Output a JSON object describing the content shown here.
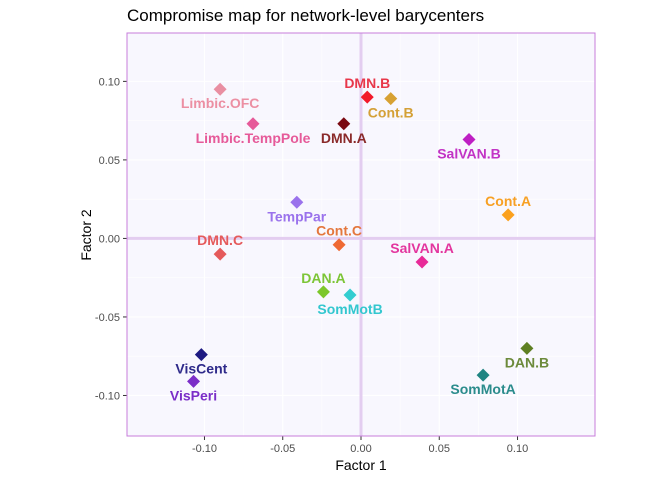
{
  "chart_data": {
    "type": "scatter",
    "title": "Compromise map for network-level barycenters",
    "xlabel": "Factor 1",
    "ylabel": "Factor 2",
    "xlim": [
      -0.1495,
      0.1495
    ],
    "ylim": [
      -0.1258,
      0.1308
    ],
    "x_ticks": [
      -0.1,
      -0.05,
      0.0,
      0.05,
      0.1
    ],
    "x_tick_labels": [
      "-0.10",
      "-0.05",
      "0.00",
      "0.05",
      "0.10"
    ],
    "y_ticks": [
      0.1,
      0.05,
      0.0,
      -0.05,
      -0.1
    ],
    "y_tick_labels": [
      "0.10",
      "0.05",
      "0.00",
      "-0.05",
      "-0.10"
    ],
    "grid": true,
    "legend": "none",
    "panel_background": "#F8F7FE",
    "panel_border": "#C77CDB",
    "origin_line_color": "#E3CDF0",
    "points": [
      {
        "label": "Limbic.OFC",
        "x": -0.09,
        "y": 0.095,
        "color": "#E98FA2",
        "label_color": "#EC8FA3",
        "label_side": "below"
      },
      {
        "label": "Limbic.TempPole",
        "x": -0.069,
        "y": 0.073,
        "color": "#E65A99",
        "label_color": "#E65A99",
        "label_side": "below"
      },
      {
        "label": "DMN.B",
        "x": 0.004,
        "y": 0.09,
        "color": "#F2192A",
        "label_color": "#E8374A",
        "label_side": "above"
      },
      {
        "label": "Cont.B",
        "x": 0.019,
        "y": 0.089,
        "color": "#D7A133",
        "label_color": "#D4A037",
        "label_side": "below"
      },
      {
        "label": "DMN.A",
        "x": -0.011,
        "y": 0.073,
        "color": "#7B0A12",
        "label_color": "#8A2A2A",
        "label_side": "below"
      },
      {
        "label": "SalVAN.B",
        "x": 0.069,
        "y": 0.063,
        "color": "#BE1FC3",
        "label_color": "#C233C5",
        "label_side": "below"
      },
      {
        "label": "TempPar",
        "x": -0.041,
        "y": 0.023,
        "color": "#9A72EC",
        "label_color": "#9A72EC",
        "label_side": "below"
      },
      {
        "label": "Cont.A",
        "x": 0.094,
        "y": 0.015,
        "color": "#FBA11E",
        "label_color": "#F7A024",
        "label_side": "above"
      },
      {
        "label": "Cont.C",
        "x": -0.014,
        "y": -0.004,
        "color": "#EF6A34",
        "label_color": "#E4773D",
        "label_side": "above"
      },
      {
        "label": "DMN.C",
        "x": -0.09,
        "y": -0.01,
        "color": "#E55A5B",
        "label_color": "#E55A5B",
        "label_side": "above"
      },
      {
        "label": "SalVAN.A",
        "x": 0.039,
        "y": -0.015,
        "color": "#E82A98",
        "label_color": "#E3369E",
        "label_side": "above"
      },
      {
        "label": "DAN.A",
        "x": -0.024,
        "y": -0.034,
        "color": "#7CC72A",
        "label_color": "#7DC537",
        "label_side": "above"
      },
      {
        "label": "SomMotB",
        "x": -0.007,
        "y": -0.036,
        "color": "#33CDD0",
        "label_color": "#33C7CF",
        "label_side": "below"
      },
      {
        "label": "DAN.B",
        "x": 0.106,
        "y": -0.07,
        "color": "#5E7F22",
        "label_color": "#6C8A3B",
        "label_side": "below"
      },
      {
        "label": "SomMotA",
        "x": 0.078,
        "y": -0.087,
        "color": "#1F8482",
        "label_color": "#2B8C8C",
        "label_side": "below"
      },
      {
        "label": "VisCent",
        "x": -0.102,
        "y": -0.074,
        "color": "#1E1A82",
        "label_color": "#2E2A8A",
        "label_side": "below"
      },
      {
        "label": "VisPeri",
        "x": -0.107,
        "y": -0.091,
        "color": "#7B2EC8",
        "label_color": "#7B2EC8",
        "label_side": "below"
      }
    ]
  }
}
